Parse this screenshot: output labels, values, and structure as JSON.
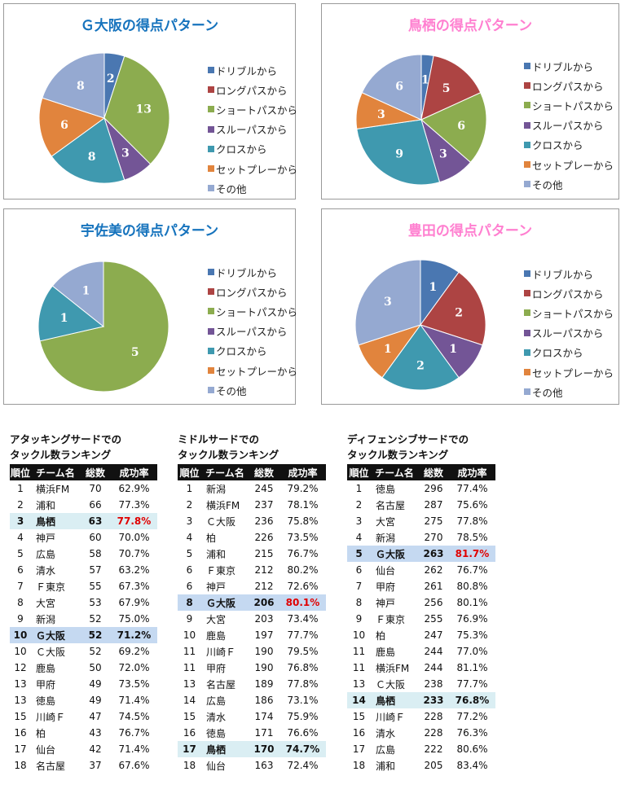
{
  "legend_labels": [
    "ドリブルから",
    "ロングパスから",
    "ショートパスから",
    "スルーパスから",
    "クロスから",
    "セットプレーから",
    "その他"
  ],
  "colors": [
    "#4a77b1",
    "#ad4443",
    "#8cac4f",
    "#735596",
    "#3f99af",
    "#e1843d",
    "#95a9d1"
  ],
  "chart_data": [
    {
      "type": "pie",
      "title": "Ｇ大阪の得点パターン",
      "title_color": "#1673bd",
      "categories": [
        "ドリブルから",
        "ロングパスから",
        "ショートパスから",
        "スルーパスから",
        "クロスから",
        "セットプレーから",
        "その他"
      ],
      "values": [
        2,
        0,
        13,
        3,
        8,
        6,
        8
      ]
    },
    {
      "type": "pie",
      "title": "鳥栖の得点パターン",
      "title_color": "#ff7fd0",
      "categories": [
        "ドリブルから",
        "ロングパスから",
        "ショートパスから",
        "スルーパスから",
        "クロスから",
        "セットプレーから",
        "その他"
      ],
      "values": [
        1,
        5,
        6,
        3,
        9,
        3,
        6
      ]
    },
    {
      "type": "pie",
      "title": "宇佐美の得点パターン",
      "title_color": "#1673bd",
      "categories": [
        "ドリブルから",
        "ロングパスから",
        "ショートパスから",
        "スルーパスから",
        "クロスから",
        "セットプレーから",
        "その他"
      ],
      "values": [
        0,
        0,
        5,
        0,
        1,
        0,
        1
      ]
    },
    {
      "type": "pie",
      "title": "豊田の得点パターン",
      "title_color": "#ff7fd0",
      "categories": [
        "ドリブルから",
        "ロングパスから",
        "ショートパスから",
        "スルーパスから",
        "クロスから",
        "セットプレーから",
        "その他"
      ],
      "values": [
        1,
        2,
        0,
        1,
        2,
        1,
        3
      ]
    }
  ],
  "tables": [
    {
      "title_line1": "アタッキングサードでの",
      "title_line2": "タックル数ランキング",
      "headers": [
        "順位",
        "チーム名",
        "総数",
        "成功率"
      ],
      "rows": [
        {
          "rank": "1",
          "team": "横浜FM",
          "total": "70",
          "rate": "62.9%"
        },
        {
          "rank": "2",
          "team": "浦和",
          "total": "66",
          "rate": "77.3%"
        },
        {
          "rank": "3",
          "team": "鳥栖",
          "total": "63",
          "rate": "77.8%",
          "hl": "cyan",
          "red": true
        },
        {
          "rank": "4",
          "team": "神戸",
          "total": "60",
          "rate": "70.0%"
        },
        {
          "rank": "5",
          "team": "広島",
          "total": "58",
          "rate": "70.7%"
        },
        {
          "rank": "6",
          "team": "清水",
          "total": "57",
          "rate": "63.2%"
        },
        {
          "rank": "7",
          "team": "Ｆ東京",
          "total": "55",
          "rate": "67.3%"
        },
        {
          "rank": "8",
          "team": "大宮",
          "total": "53",
          "rate": "67.9%"
        },
        {
          "rank": "9",
          "team": "新潟",
          "total": "52",
          "rate": "75.0%"
        },
        {
          "rank": "10",
          "team": "Ｇ大阪",
          "total": "52",
          "rate": "71.2%",
          "hl": "blue"
        },
        {
          "rank": "10",
          "team": "Ｃ大阪",
          "total": "52",
          "rate": "69.2%"
        },
        {
          "rank": "12",
          "team": "鹿島",
          "total": "50",
          "rate": "72.0%"
        },
        {
          "rank": "13",
          "team": "甲府",
          "total": "49",
          "rate": "73.5%"
        },
        {
          "rank": "13",
          "team": "徳島",
          "total": "49",
          "rate": "71.4%"
        },
        {
          "rank": "15",
          "team": "川崎Ｆ",
          "total": "47",
          "rate": "74.5%"
        },
        {
          "rank": "16",
          "team": "柏",
          "total": "43",
          "rate": "76.7%"
        },
        {
          "rank": "17",
          "team": "仙台",
          "total": "42",
          "rate": "71.4%"
        },
        {
          "rank": "18",
          "team": "名古屋",
          "total": "37",
          "rate": "67.6%"
        }
      ]
    },
    {
      "title_line1": "ミドルサードでの",
      "title_line2": "タックル数ランキング",
      "headers": [
        "順位",
        "チーム名",
        "総数",
        "成功率"
      ],
      "rows": [
        {
          "rank": "1",
          "team": "新潟",
          "total": "245",
          "rate": "79.2%"
        },
        {
          "rank": "2",
          "team": "横浜FM",
          "total": "237",
          "rate": "78.1%"
        },
        {
          "rank": "3",
          "team": "Ｃ大阪",
          "total": "236",
          "rate": "75.8%"
        },
        {
          "rank": "4",
          "team": "柏",
          "total": "226",
          "rate": "73.5%"
        },
        {
          "rank": "5",
          "team": "浦和",
          "total": "215",
          "rate": "76.7%"
        },
        {
          "rank": "6",
          "team": "Ｆ東京",
          "total": "212",
          "rate": "80.2%"
        },
        {
          "rank": "6",
          "team": "神戸",
          "total": "212",
          "rate": "72.6%"
        },
        {
          "rank": "8",
          "team": "Ｇ大阪",
          "total": "206",
          "rate": "80.1%",
          "hl": "blue",
          "red": true
        },
        {
          "rank": "9",
          "team": "大宮",
          "total": "203",
          "rate": "73.4%"
        },
        {
          "rank": "10",
          "team": "鹿島",
          "total": "197",
          "rate": "77.7%"
        },
        {
          "rank": "11",
          "team": "川崎Ｆ",
          "total": "190",
          "rate": "79.5%"
        },
        {
          "rank": "11",
          "team": "甲府",
          "total": "190",
          "rate": "76.8%"
        },
        {
          "rank": "13",
          "team": "名古屋",
          "total": "189",
          "rate": "77.8%"
        },
        {
          "rank": "14",
          "team": "広島",
          "total": "186",
          "rate": "73.1%"
        },
        {
          "rank": "15",
          "team": "清水",
          "total": "174",
          "rate": "75.9%"
        },
        {
          "rank": "16",
          "team": "徳島",
          "total": "171",
          "rate": "76.6%"
        },
        {
          "rank": "17",
          "team": "鳥栖",
          "total": "170",
          "rate": "74.7%",
          "hl": "cyan"
        },
        {
          "rank": "18",
          "team": "仙台",
          "total": "163",
          "rate": "72.4%"
        }
      ]
    },
    {
      "title_line1": "ディフェンシブサードでの",
      "title_line2": "タックル数ランキング",
      "headers": [
        "順位",
        "チーム名",
        "総数",
        "成功率"
      ],
      "rows": [
        {
          "rank": "1",
          "team": "徳島",
          "total": "296",
          "rate": "77.4%"
        },
        {
          "rank": "2",
          "team": "名古屋",
          "total": "287",
          "rate": "75.6%"
        },
        {
          "rank": "3",
          "team": "大宮",
          "total": "275",
          "rate": "77.8%"
        },
        {
          "rank": "4",
          "team": "新潟",
          "total": "270",
          "rate": "78.5%"
        },
        {
          "rank": "5",
          "team": "Ｇ大阪",
          "total": "263",
          "rate": "81.7%",
          "hl": "blue",
          "red": true
        },
        {
          "rank": "6",
          "team": "仙台",
          "total": "262",
          "rate": "76.7%"
        },
        {
          "rank": "7",
          "team": "甲府",
          "total": "261",
          "rate": "80.8%"
        },
        {
          "rank": "8",
          "team": "神戸",
          "total": "256",
          "rate": "80.1%"
        },
        {
          "rank": "9",
          "team": "Ｆ東京",
          "total": "255",
          "rate": "76.9%"
        },
        {
          "rank": "10",
          "team": "柏",
          "total": "247",
          "rate": "75.3%"
        },
        {
          "rank": "11",
          "team": "鹿島",
          "total": "244",
          "rate": "77.0%"
        },
        {
          "rank": "11",
          "team": "横浜FM",
          "total": "244",
          "rate": "81.1%"
        },
        {
          "rank": "13",
          "team": "Ｃ大阪",
          "total": "238",
          "rate": "77.7%"
        },
        {
          "rank": "14",
          "team": "鳥栖",
          "total": "233",
          "rate": "76.8%",
          "hl": "cyan"
        },
        {
          "rank": "15",
          "team": "川崎Ｆ",
          "total": "228",
          "rate": "77.2%"
        },
        {
          "rank": "16",
          "team": "清水",
          "total": "228",
          "rate": "76.3%"
        },
        {
          "rank": "17",
          "team": "広島",
          "total": "222",
          "rate": "80.6%"
        },
        {
          "rank": "18",
          "team": "浦和",
          "total": "205",
          "rate": "83.4%"
        }
      ]
    }
  ]
}
